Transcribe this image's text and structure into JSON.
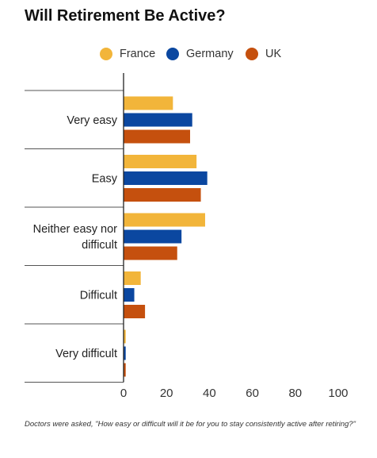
{
  "title": "Will Retirement Be Active?",
  "note": "Doctors were asked, \"How easy or difficult will it be for you to stay consistently active after retiring?\"",
  "chart_data": {
    "type": "bar",
    "orientation": "horizontal",
    "title": "Will Retirement Be Active?",
    "categories": [
      [
        "Very easy"
      ],
      [
        "Easy"
      ],
      [
        "Neither easy nor",
        "difficult"
      ],
      [
        "Difficult"
      ],
      [
        "Very difficult"
      ]
    ],
    "series": [
      {
        "name": "France",
        "color": "#F2B53A",
        "values": [
          23,
          34,
          38,
          8,
          1
        ]
      },
      {
        "name": "Germany",
        "color": "#0B47A0",
        "values": [
          32,
          39,
          27,
          5,
          1
        ]
      },
      {
        "name": "UK",
        "color": "#C5500E",
        "values": [
          31,
          36,
          25,
          10,
          1
        ]
      }
    ],
    "xlim": [
      0,
      100
    ],
    "xticks": [
      0,
      20,
      40,
      60,
      80,
      100
    ],
    "grid": false,
    "legend_position": "top"
  }
}
